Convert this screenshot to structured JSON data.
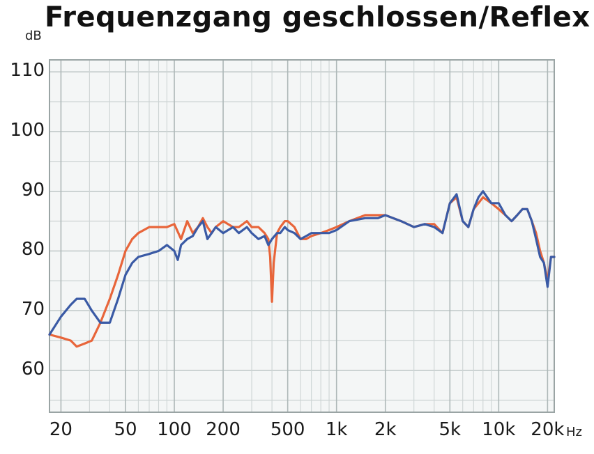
{
  "chart_data": {
    "type": "line",
    "title": "Frequenzgang geschlossen/Reflex",
    "ylabel": "dB",
    "xlabel": "Hz",
    "xscale": "log",
    "xlim": [
      17,
      22000
    ],
    "ylim": [
      53,
      112
    ],
    "grid": true,
    "y_ticks": [
      60,
      70,
      80,
      90,
      100,
      110
    ],
    "x_ticks": [
      {
        "value": 20,
        "label": "20"
      },
      {
        "value": 50,
        "label": "50"
      },
      {
        "value": 100,
        "label": "100"
      },
      {
        "value": 200,
        "label": "200"
      },
      {
        "value": 500,
        "label": "500"
      },
      {
        "value": 1000,
        "label": "1k"
      },
      {
        "value": 2000,
        "label": "2k"
      },
      {
        "value": 5000,
        "label": "5k"
      },
      {
        "value": 10000,
        "label": "10k"
      },
      {
        "value": 20000,
        "label": "20k"
      }
    ],
    "series": [
      {
        "color": "#e8653a",
        "points": [
          [
            17,
            66
          ],
          [
            20,
            65.5
          ],
          [
            23,
            65
          ],
          [
            25,
            64
          ],
          [
            28,
            64.5
          ],
          [
            31,
            65
          ],
          [
            35,
            68
          ],
          [
            40,
            72
          ],
          [
            45,
            76
          ],
          [
            50,
            80
          ],
          [
            55,
            82
          ],
          [
            60,
            83
          ],
          [
            70,
            84
          ],
          [
            80,
            84
          ],
          [
            90,
            84
          ],
          [
            100,
            84.5
          ],
          [
            110,
            82
          ],
          [
            120,
            85
          ],
          [
            130,
            83
          ],
          [
            140,
            84
          ],
          [
            150,
            85.5
          ],
          [
            160,
            84
          ],
          [
            170,
            83
          ],
          [
            180,
            84
          ],
          [
            200,
            85
          ],
          [
            230,
            84
          ],
          [
            250,
            84
          ],
          [
            280,
            85
          ],
          [
            300,
            84
          ],
          [
            330,
            84
          ],
          [
            360,
            83
          ],
          [
            380,
            82
          ],
          [
            390,
            79
          ],
          [
            400,
            71.5
          ],
          [
            410,
            78
          ],
          [
            430,
            83
          ],
          [
            450,
            84
          ],
          [
            480,
            85
          ],
          [
            500,
            85
          ],
          [
            550,
            84
          ],
          [
            600,
            82
          ],
          [
            650,
            82
          ],
          [
            700,
            82.5
          ],
          [
            800,
            83
          ],
          [
            900,
            83.5
          ],
          [
            1000,
            84
          ],
          [
            1200,
            85
          ],
          [
            1500,
            86
          ],
          [
            1800,
            86
          ],
          [
            2000,
            86
          ],
          [
            2500,
            85
          ],
          [
            3000,
            84
          ],
          [
            3500,
            84.5
          ],
          [
            4000,
            84.5
          ],
          [
            4500,
            83
          ],
          [
            5000,
            88
          ],
          [
            5500,
            89
          ],
          [
            6000,
            85
          ],
          [
            6500,
            84
          ],
          [
            7000,
            87
          ],
          [
            7500,
            88
          ],
          [
            8000,
            89
          ],
          [
            9000,
            88
          ],
          [
            10000,
            87
          ],
          [
            11000,
            86
          ],
          [
            12000,
            85
          ],
          [
            13000,
            86
          ],
          [
            14000,
            87
          ],
          [
            15000,
            87
          ],
          [
            16000,
            85
          ],
          [
            17000,
            83
          ],
          [
            18000,
            80
          ],
          [
            19000,
            78
          ],
          [
            20000,
            75
          ],
          [
            21000,
            79
          ],
          [
            22000,
            79
          ]
        ]
      },
      {
        "color": "#3a5aa5",
        "points": [
          [
            17,
            66
          ],
          [
            20,
            69
          ],
          [
            23,
            71
          ],
          [
            25,
            72
          ],
          [
            28,
            72
          ],
          [
            31,
            70
          ],
          [
            35,
            68
          ],
          [
            40,
            68
          ],
          [
            45,
            72
          ],
          [
            50,
            76
          ],
          [
            55,
            78
          ],
          [
            60,
            79
          ],
          [
            70,
            79.5
          ],
          [
            80,
            80
          ],
          [
            90,
            81
          ],
          [
            100,
            80
          ],
          [
            105,
            78.5
          ],
          [
            110,
            81
          ],
          [
            120,
            82
          ],
          [
            130,
            82.5
          ],
          [
            140,
            84
          ],
          [
            150,
            85
          ],
          [
            160,
            82
          ],
          [
            170,
            83
          ],
          [
            180,
            84
          ],
          [
            200,
            83
          ],
          [
            230,
            84
          ],
          [
            250,
            83
          ],
          [
            280,
            84
          ],
          [
            300,
            83
          ],
          [
            330,
            82
          ],
          [
            360,
            82.5
          ],
          [
            380,
            81
          ],
          [
            400,
            82
          ],
          [
            430,
            83
          ],
          [
            450,
            83
          ],
          [
            480,
            84
          ],
          [
            500,
            83.5
          ],
          [
            550,
            83
          ],
          [
            600,
            82
          ],
          [
            650,
            82.5
          ],
          [
            700,
            83
          ],
          [
            800,
            83
          ],
          [
            900,
            83
          ],
          [
            1000,
            83.5
          ],
          [
            1200,
            85
          ],
          [
            1500,
            85.5
          ],
          [
            1800,
            85.5
          ],
          [
            2000,
            86
          ],
          [
            2500,
            85
          ],
          [
            3000,
            84
          ],
          [
            3500,
            84.5
          ],
          [
            4000,
            84
          ],
          [
            4500,
            83
          ],
          [
            5000,
            88
          ],
          [
            5500,
            89.5
          ],
          [
            6000,
            85
          ],
          [
            6500,
            84
          ],
          [
            7000,
            87
          ],
          [
            7500,
            89
          ],
          [
            8000,
            90
          ],
          [
            9000,
            88
          ],
          [
            10000,
            88
          ],
          [
            11000,
            86
          ],
          [
            12000,
            85
          ],
          [
            13000,
            86
          ],
          [
            14000,
            87
          ],
          [
            15000,
            87
          ],
          [
            16000,
            85
          ],
          [
            17000,
            82
          ],
          [
            18000,
            79
          ],
          [
            19000,
            78
          ],
          [
            20000,
            74
          ],
          [
            21000,
            79
          ],
          [
            22000,
            79
          ]
        ]
      }
    ]
  }
}
